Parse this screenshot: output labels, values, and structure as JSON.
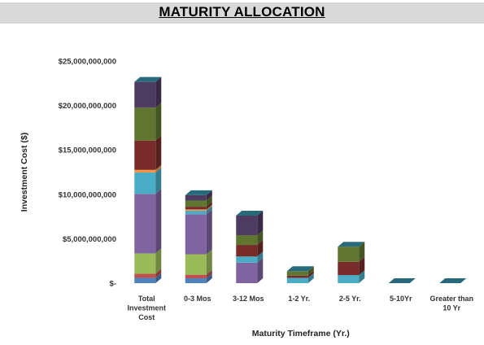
{
  "title": "MATURITY ALLOCATION",
  "chart_data": {
    "type": "bar",
    "stacked": true,
    "three_d": true,
    "title": "MATURITY ALLOCATION",
    "xlabel": "Maturity Timeframe (Yr.)",
    "ylabel": "Investment Cost ($)",
    "ylim": [
      0,
      25000000000
    ],
    "y_ticks": [
      {
        "value": 0,
        "label": "$-"
      },
      {
        "value": 5000000000,
        "label": "$5,000,000,000"
      },
      {
        "value": 10000000000,
        "label": "$10,000,000,000"
      },
      {
        "value": 15000000000,
        "label": "$15,000,000,000"
      },
      {
        "value": 20000000000,
        "label": "$20,000,000,000"
      },
      {
        "value": 25000000000,
        "label": "$25,000,000,000"
      }
    ],
    "categories": [
      [
        "Total",
        "Investment",
        "Cost"
      ],
      [
        "0-3 Mos"
      ],
      [
        "3-12 Mos"
      ],
      [
        "1-2 Yr."
      ],
      [
        "2-5 Yr."
      ],
      [
        "5-10Yr"
      ],
      [
        "Greater than",
        "10 Yr"
      ]
    ],
    "series": [
      {
        "color": "#4f81bd",
        "values": [
          600000000,
          550000000,
          0,
          0,
          0,
          0,
          0
        ]
      },
      {
        "color": "#c0504d",
        "values": [
          450000000,
          400000000,
          0,
          0,
          0,
          0,
          0
        ]
      },
      {
        "color": "#9bbb59",
        "values": [
          2300000000,
          2300000000,
          0,
          0,
          0,
          0,
          0
        ]
      },
      {
        "color": "#8064a2",
        "values": [
          6700000000,
          4500000000,
          2300000000,
          0,
          0,
          0,
          0
        ]
      },
      {
        "color": "#4bacc6",
        "values": [
          2400000000,
          400000000,
          700000000,
          600000000,
          900000000,
          0,
          0
        ]
      },
      {
        "color": "#f79646",
        "values": [
          300000000,
          150000000,
          0,
          0,
          0,
          0,
          0
        ]
      },
      {
        "color": "#772c2a",
        "values": [
          3300000000,
          300000000,
          1300000000,
          250000000,
          1500000000,
          0,
          0
        ]
      },
      {
        "color": "#5f7530",
        "values": [
          3700000000,
          700000000,
          1100000000,
          500000000,
          1700000000,
          0,
          0
        ]
      },
      {
        "color": "#4d3b62",
        "values": [
          2900000000,
          600000000,
          2200000000,
          0,
          0,
          0,
          0
        ]
      },
      {
        "color": "#276a7c",
        "values": [
          0,
          0,
          0,
          0,
          0,
          0,
          0
        ]
      }
    ],
    "legend": "none",
    "grid": false
  }
}
